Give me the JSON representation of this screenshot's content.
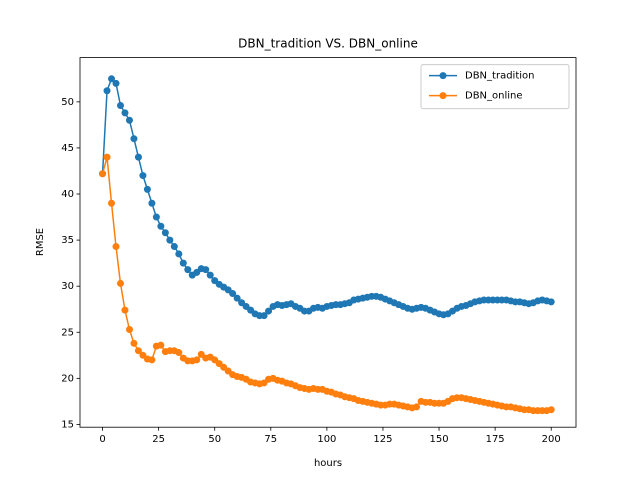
{
  "chart_data": {
    "type": "line",
    "title": "DBN_tradition VS. DBN_online",
    "xlabel": "hours",
    "ylabel": "RMSE",
    "x": [
      0,
      2,
      4,
      6,
      8,
      10,
      12,
      14,
      16,
      18,
      20,
      22,
      24,
      26,
      28,
      30,
      32,
      34,
      36,
      38,
      40,
      42,
      44,
      46,
      48,
      50,
      52,
      54,
      56,
      58,
      60,
      62,
      64,
      66,
      68,
      70,
      72,
      74,
      76,
      78,
      80,
      82,
      84,
      86,
      88,
      90,
      92,
      94,
      96,
      98,
      100,
      102,
      104,
      106,
      108,
      110,
      112,
      114,
      116,
      118,
      120,
      122,
      124,
      126,
      128,
      130,
      132,
      134,
      136,
      138,
      140,
      142,
      144,
      146,
      148,
      150,
      152,
      154,
      156,
      158,
      160,
      162,
      164,
      166,
      168,
      170,
      172,
      174,
      176,
      178,
      180,
      182,
      184,
      186,
      188,
      190,
      192,
      194,
      196,
      198,
      200
    ],
    "series": [
      {
        "name": "DBN_tradition",
        "color": "#1f77b4",
        "values": [
          42.2,
          51.2,
          52.5,
          52,
          49.6,
          48.8,
          48,
          46,
          44,
          42,
          40.5,
          39,
          37.5,
          36.5,
          35.8,
          35,
          34.3,
          33.5,
          32.5,
          31.8,
          31.2,
          31.5,
          31.9,
          31.8,
          31.2,
          30.6,
          30.2,
          29.9,
          29.6,
          29.2,
          28.7,
          28.2,
          27.8,
          27.4,
          27.0,
          26.8,
          26.8,
          27.3,
          27.8,
          28.0,
          27.9,
          28.0,
          28.1,
          27.8,
          27.6,
          27.3,
          27.3,
          27.6,
          27.7,
          27.6,
          27.8,
          27.9,
          28,
          28,
          28.1,
          28.2,
          28.5,
          28.6,
          28.7,
          28.8,
          28.9,
          28.9,
          28.8,
          28.6,
          28.4,
          28.2,
          28.0,
          27.8,
          27.6,
          27.5,
          27.6,
          27.7,
          27.6,
          27.4,
          27.2,
          27.0,
          26.9,
          27.0,
          27.3,
          27.6,
          27.8,
          27.9,
          28.1,
          28.3,
          28.4,
          28.5,
          28.5,
          28.5,
          28.5,
          28.5,
          28.5,
          28.4,
          28.3,
          28.3,
          28.2,
          28.1,
          28.2,
          28.4,
          28.5,
          28.4,
          28.3
        ]
      },
      {
        "name": "DBN_online",
        "color": "#ff7f0e",
        "values": [
          42.2,
          44,
          39,
          34.3,
          30.3,
          27.4,
          25.3,
          23.8,
          23,
          22.5,
          22.1,
          22,
          23.5,
          23.6,
          22.9,
          23,
          23,
          22.8,
          22.2,
          21.9,
          21.9,
          22,
          22.6,
          22.2,
          22.3,
          22,
          21.6,
          21.2,
          20.8,
          20.4,
          20.2,
          20.1,
          19.9,
          19.6,
          19.5,
          19.4,
          19.5,
          19.9,
          20,
          19.8,
          19.7,
          19.5,
          19.4,
          19.2,
          19.0,
          18.9,
          18.8,
          18.9,
          18.8,
          18.8,
          18.6,
          18.5,
          18.3,
          18.2,
          18.0,
          17.9,
          17.8,
          17.6,
          17.5,
          17.4,
          17.3,
          17.2,
          17.1,
          17.1,
          17.2,
          17.2,
          17.1,
          17.0,
          16.9,
          16.8,
          16.9,
          17.5,
          17.4,
          17.4,
          17.3,
          17.3,
          17.3,
          17.5,
          17.8,
          17.9,
          17.9,
          17.8,
          17.7,
          17.6,
          17.5,
          17.4,
          17.3,
          17.2,
          17.1,
          17.0,
          16.9,
          16.9,
          16.8,
          16.7,
          16.6,
          16.6,
          16.5,
          16.5,
          16.5,
          16.5,
          16.6
        ]
      }
    ],
    "xlim": [
      -10.05,
      211.05
    ],
    "xticks": [
      0,
      25,
      50,
      75,
      100,
      125,
      150,
      175,
      200
    ],
    "ylim": [
      14.7,
      54.8
    ],
    "yticks": [
      15,
      20,
      25,
      30,
      35,
      40,
      45,
      50
    ],
    "legend": "upper right"
  }
}
